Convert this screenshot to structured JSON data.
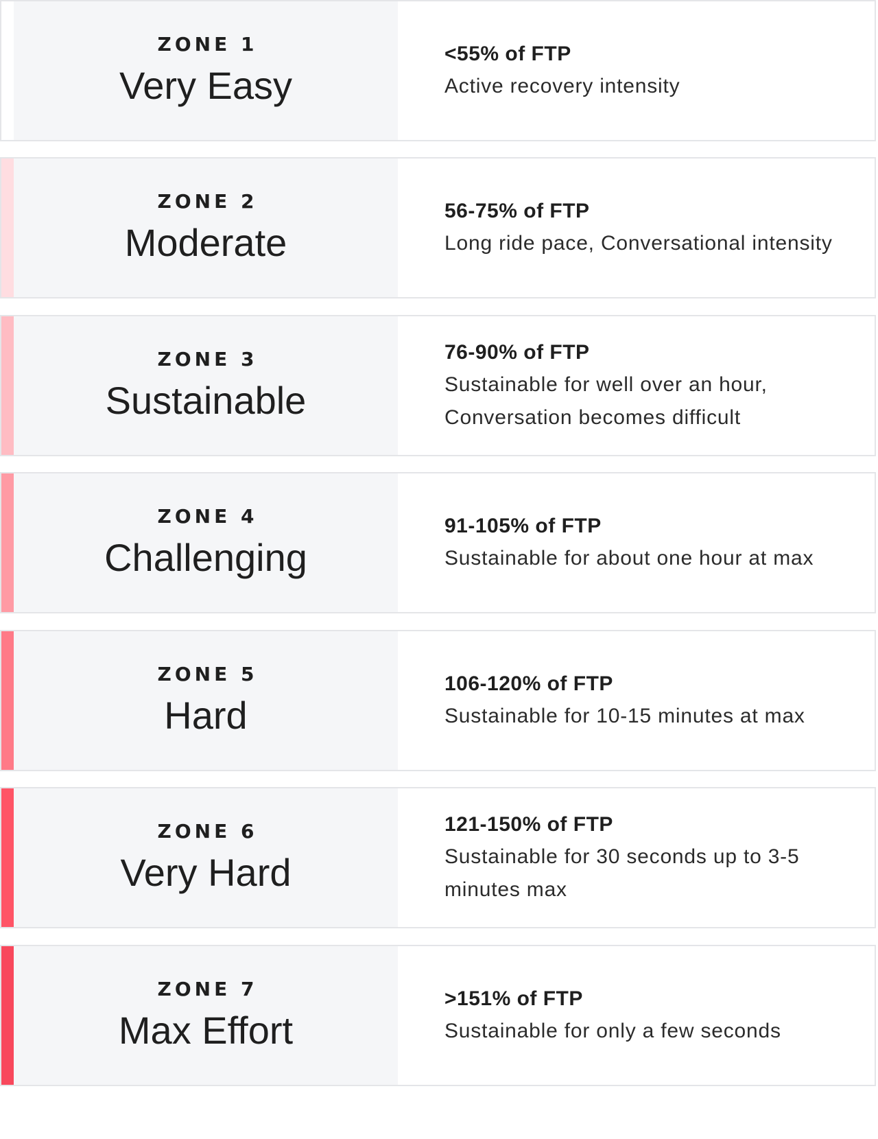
{
  "zones": [
    {
      "label": "ZONE 1",
      "name": "Very Easy",
      "range": "<55% of FTP",
      "description": "Active recovery intensity",
      "accent_color": "#ffffff"
    },
    {
      "label": "ZONE 2",
      "name": "Moderate",
      "range": "56-75% of FTP",
      "description": "Long ride pace, Conversational intensity",
      "accent_color": "#ffdde1"
    },
    {
      "label": "ZONE 3",
      "name": "Sustainable",
      "range": "76-90% of FTP",
      "description": "Sustainable for well over an hour, Conversation becomes difficult",
      "accent_color": "#ffbcc3"
    },
    {
      "label": "ZONE 4",
      "name": "Challenging",
      "range": "91-105% of FTP",
      "description": "Sustainable for about one hour at max",
      "accent_color": "#ff9aa4"
    },
    {
      "label": "ZONE 5",
      "name": "Hard",
      "range": "106-120% of FTP",
      "description": "Sustainable for 10-15 minutes at max",
      "accent_color": "#ff7a87"
    },
    {
      "label": "ZONE 6",
      "name": "Very Hard",
      "range": "121-150% of FTP",
      "description": "Sustainable for 30 seconds up to 3-5 minutes max",
      "accent_color": "#ff5466"
    },
    {
      "label": "ZONE 7",
      "name": "Max Effort",
      "range": ">151% of FTP",
      "description": "Sustainable for only a few seconds",
      "accent_color": "#f8485c"
    }
  ]
}
